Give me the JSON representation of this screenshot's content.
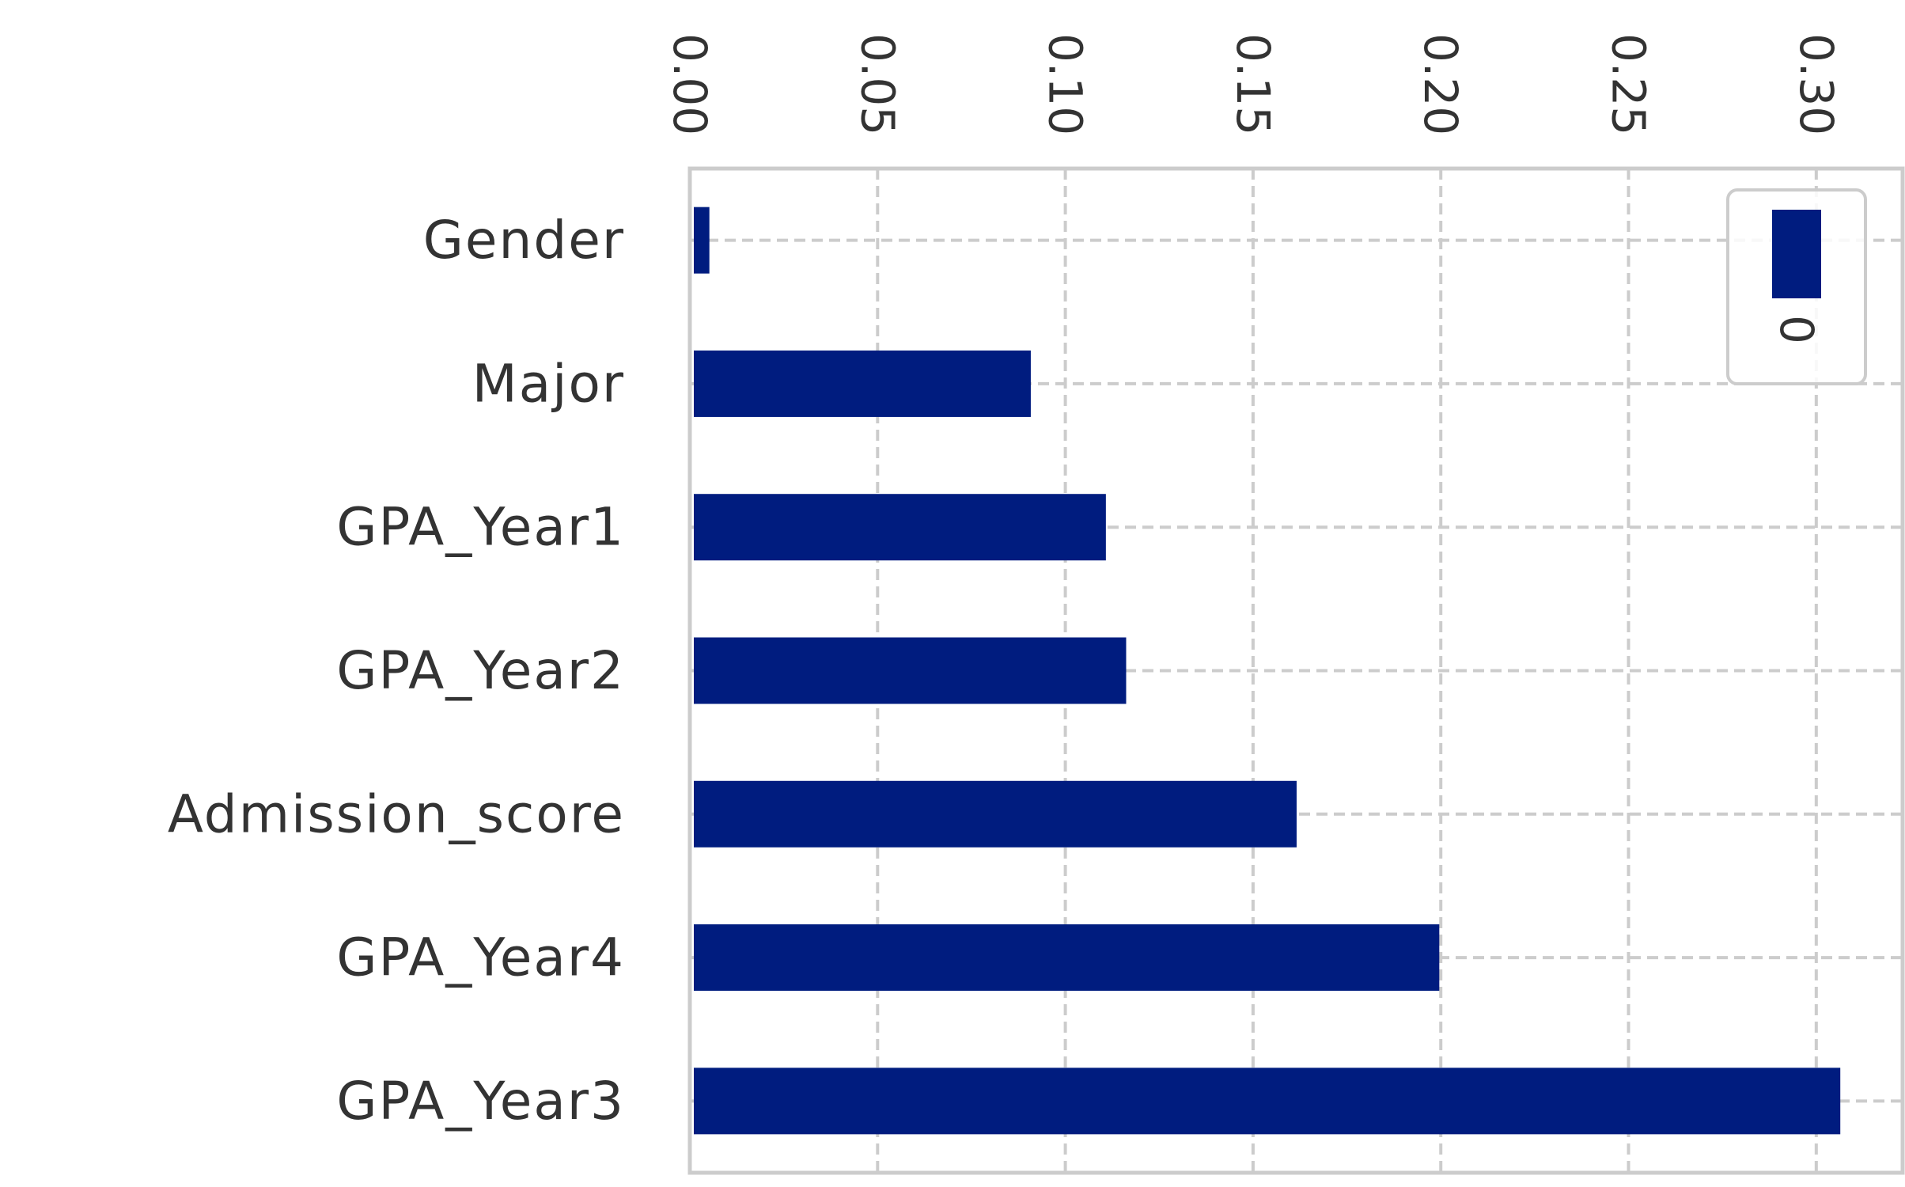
{
  "chart_data": {
    "type": "bar",
    "orientation": "horizontal",
    "categories": [
      "Gender",
      "Major",
      "GPA_Year1",
      "GPA_Year2",
      "Admission_score",
      "GPA_Year4",
      "GPA_Year3"
    ],
    "series": [
      {
        "name": "0",
        "values": [
          0.0052,
          0.0908,
          0.1108,
          0.1162,
          0.1616,
          0.1996,
          0.3064
        ]
      }
    ],
    "xlim": [
      0,
      0.323
    ],
    "xticks": [
      "0.00",
      "0.05",
      "0.10",
      "0.15",
      "0.20",
      "0.25",
      "0.30"
    ],
    "xtick_values": [
      0,
      0.05,
      0.1,
      0.15,
      0.2,
      0.25,
      0.3
    ],
    "x_axis_position": "top",
    "tick_label_rotation": "rotated 90 degrees clockwise",
    "grid": true,
    "grid_style": "dashed",
    "legend_placement": "top-right",
    "bar_color": "#001c7f",
    "grid_color": "#cccccc",
    "frame_color": "#cccccc",
    "text_color": "#333333",
    "title": "",
    "xlabel": "",
    "ylabel": ""
  }
}
